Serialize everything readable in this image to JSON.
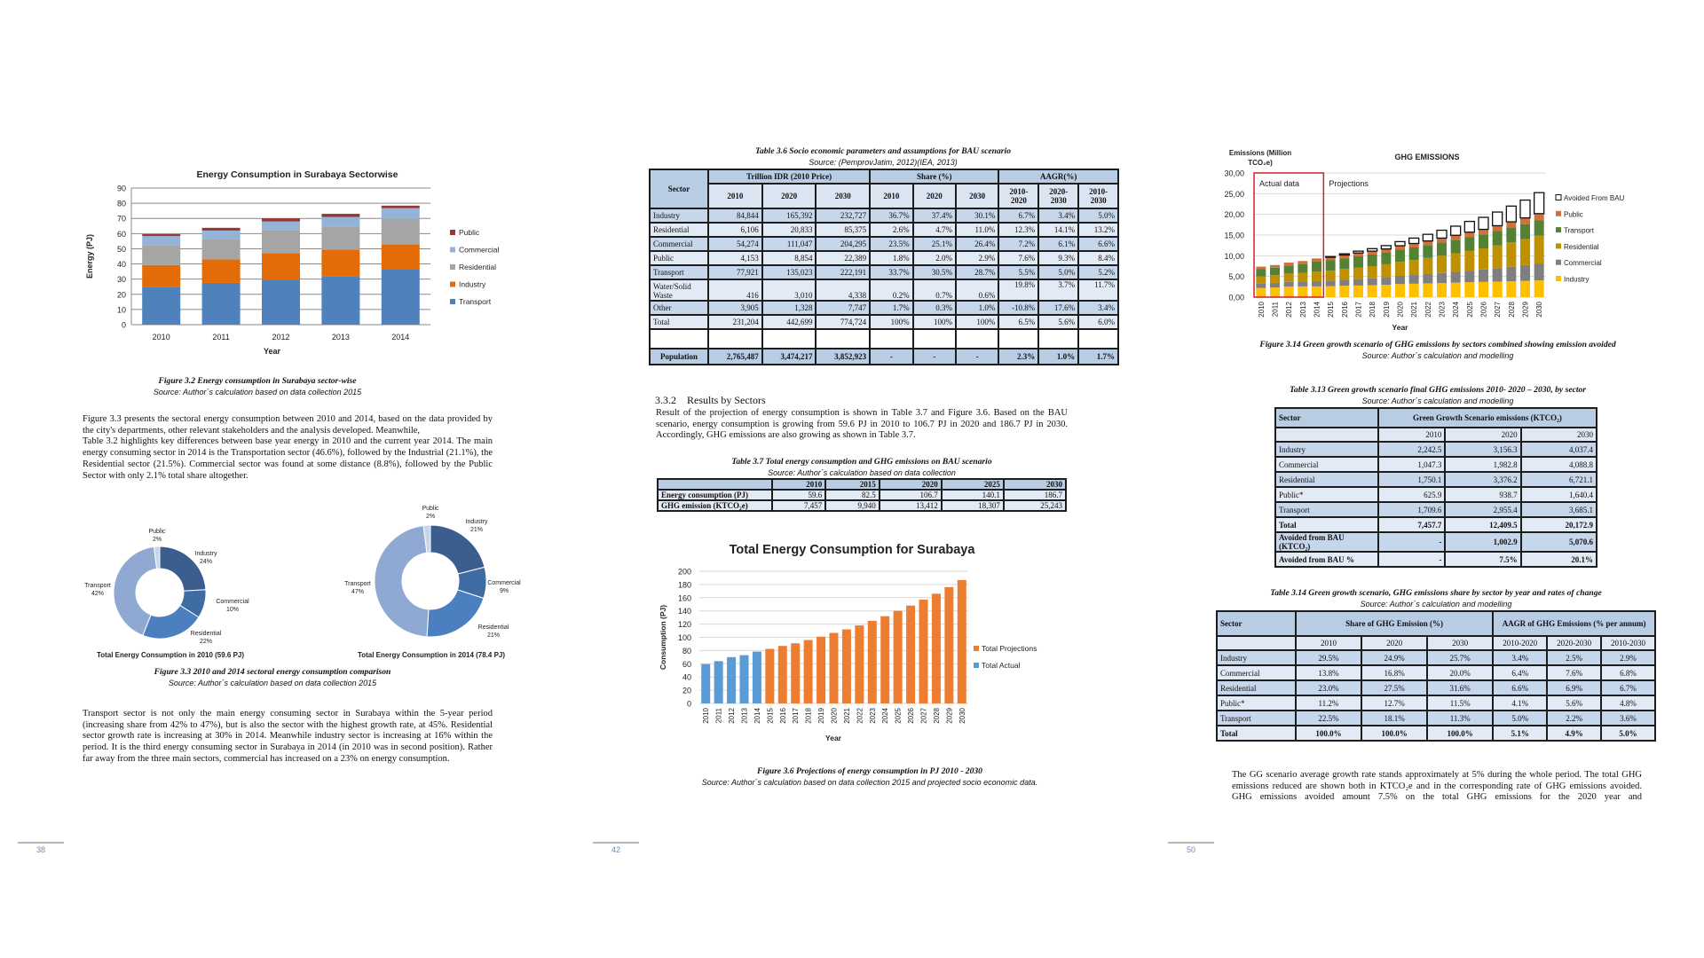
{
  "page1": {
    "number": "38",
    "fig32_caption": "Figure 3.2 Energy consumption in Surabaya sector-wise",
    "fig32_source": "Source: Author´s calculation based on data collection 2015",
    "para1a": "Figure 3.3 presents the sectoral energy consumption between 2010 and 2014, based on the data provided by the city's departments, other relevant stakeholders and the analysis developed. Meanwhile,",
    "para1b": "Table 3.2 highlights key differences between base year energy in 2010 and the current year 2014. The main energy consuming sector in 2014 is the Transportation sector (46.6%), followed by the Industrial (21.1%), the Residential sector (21.5%). Commercial sector was found at some distance (8.8%), followed by the Public Sector with only 2.1% total share altogether.",
    "fig33_caption": "Figure 3.3 2010 and 2014 sectoral energy consumption comparison",
    "fig33_source": "Source: Author´s calculation based on data collection 2015",
    "para2": "Transport sector is not only the main energy consuming sector in Surabaya within the 5-year period (increasing share from 42% to 47%), but is also the sector with the highest growth rate, at 45%. Residential sector growth rate is increasing at 30% in 2014. Meanwhile industry sector is increasing at 16% within the period. It is the third energy consuming sector in Surabaya in 2014 (in 2010 was in second position). Rather far away from the three main sectors, commercial has increased on a 23% on energy consumption."
  },
  "page2": {
    "number": "42",
    "section_number": "3.3.2",
    "section_title": "Results by Sectors",
    "para": "Result of the projection of energy consumption is shown in Table 3.7 and Figure 3.6. Based on the BAU scenario, energy consumption is growing from 59.6 PJ in 2010 to 106.7 PJ in 2020 and 186.7 PJ in 2030. Accordingly, GHG emissions are also growing as shown in Table 3.7.",
    "fig36_caption": "Figure 3.6 Projections of energy consumption in PJ 2010 - 2030",
    "fig36_source": "Source: Author´s calculation based on data collection 2015 and projected socio economic data."
  },
  "page3": {
    "number": "50",
    "fig314_caption": "Figure 3.14 Green growth scenario of GHG emissions by sectors combined showing emission avoided",
    "fig314_source": "Source: Author´s calculation and modelling",
    "para": "The GG scenario average growth rate stands approximately at 5% during the whole period. The total GHG emissions reduced are shown both in KTCO₂e and in the corresponding rate of GHG emissions avoided. GHG emissions avoided amount 7.5% on the total GHG emissions for the 2020 year and"
  },
  "table_3_6": {
    "caption": "Table 3.6 Socio economic parameters and assumptions for BAU scenario",
    "source": "Source: (PemprovJatim, 2012)(IEA, 2013)",
    "sector": "Sector",
    "group_idr": "Trillion IDR (2010 Price)",
    "group_share": "Share (%)",
    "group_aagr": "AAGR(%)",
    "years": [
      "2010",
      "2020",
      "2030",
      "2010",
      "2020",
      "2030"
    ],
    "periods": [
      "2010-2020",
      "2020-2030",
      "2010-2030"
    ],
    "rows": [
      [
        "Industry",
        "84,844",
        "165,392",
        "232,727",
        "36.7%",
        "37.4%",
        "30.1%",
        "6.7%",
        "3.4%",
        "5.0%"
      ],
      [
        "Residential",
        "6,106",
        "20,833",
        "85,375",
        "2.6%",
        "4.7%",
        "11.0%",
        "12.3%",
        "14.1%",
        "13.2%"
      ],
      [
        "Commercial",
        "54,274",
        "111,047",
        "204,295",
        "23.5%",
        "25.1%",
        "26.4%",
        "7.2%",
        "6.1%",
        "6.6%"
      ],
      [
        "Public",
        "4,153",
        "8,854",
        "22,389",
        "1.8%",
        "2.0%",
        "2.9%",
        "7.6%",
        "9.3%",
        "8.4%"
      ],
      [
        "Transport",
        "77,921",
        "135,023",
        "222,191",
        "33.7%",
        "30.5%",
        "28.7%",
        "5.5%",
        "5.0%",
        "5.2%"
      ],
      [
        "Water/Solid Waste",
        "416",
        "3,010",
        "4,338",
        "0.2%",
        "0.7%",
        "0.6%",
        "19.8%",
        "3.7%",
        "11.7%"
      ],
      [
        "Other",
        "3,905",
        "1,328",
        "7,747",
        "1.7%",
        "0.3%",
        "1.0%",
        "-10.8%",
        "17.6%",
        "3.4%"
      ],
      [
        "Total",
        "231,204",
        "442,699",
        "774,724",
        "100%",
        "100%",
        "100%",
        "6.5%",
        "5.6%",
        "6.0%"
      ],
      [
        "",
        "",
        "",
        "",
        "",
        "",
        "",
        "",
        "",
        ""
      ],
      [
        "Population",
        "2,765,487",
        "3,474,217",
        "3,852,923",
        "-",
        "-",
        "-",
        "2.3%",
        "1.0%",
        "1.7%"
      ]
    ]
  },
  "table_3_7": {
    "caption": "Table 3.7 Total energy consumption and GHG emissions on BAU scenario",
    "source": "Source: Author´s calculation based on data collection",
    "years": [
      "2010",
      "2015",
      "2020",
      "2025",
      "2030"
    ],
    "rows": [
      [
        "Energy consumption (PJ)",
        "59.6",
        "82.5",
        "106.7",
        "140.1",
        "186.7"
      ],
      [
        "GHG emission (KTCO₂e)",
        "7,457",
        "9,940",
        "13,412",
        "18,307",
        "25,243"
      ]
    ]
  },
  "table_3_13": {
    "caption": "Table 3.13 Green growth scenario final GHG emissions 2010- 2020 – 2030, by sector",
    "source": "Source: Author´s calculation and modelling",
    "sector": "Sector",
    "group": "Green Growth Scenario emissions (KTCO₂)",
    "years": [
      "2010",
      "2020",
      "2030"
    ],
    "rows": [
      [
        "Industry",
        "2,242.5",
        "3,156.3",
        "4,037.4"
      ],
      [
        "Commercial",
        "1,047.3",
        "1,982.8",
        "4,088.8"
      ],
      [
        "Residential",
        "1,750.1",
        "3,376.2",
        "6,721.1"
      ],
      [
        "Public*",
        "625.9",
        "938.7",
        "1,640.4"
      ],
      [
        "Transport",
        "1,709.6",
        "2,955.4",
        "3,685.1"
      ],
      [
        "Total",
        "7,457.7",
        "12,409.5",
        "20,172.9"
      ],
      [
        "Avoided from BAU (KTCO₂)",
        "-",
        "1,002.9",
        "5,070.6"
      ],
      [
        "Avoided from BAU  %",
        "-",
        "7.5%",
        "20.1%"
      ]
    ]
  },
  "table_3_14": {
    "caption": "Table 3.14 Green growth scenario, GHG emissions share by sector by year and rates of change",
    "source": "Source: Author´s calculation and modelling",
    "sector": "Sector",
    "group_share": "Share of GHG Emission (%)",
    "group_aagr": "AAGR of GHG Emissions (% per annum)",
    "years": [
      "2010",
      "2020",
      "2030",
      "2010-2020",
      "2020-2030",
      "2010-2030"
    ],
    "rows": [
      [
        "Industry",
        "29.5%",
        "24.9%",
        "25.7%",
        "3.4%",
        "2.5%",
        "2.9%"
      ],
      [
        "Commercial",
        "13.8%",
        "16.8%",
        "20.0%",
        "6.4%",
        "7.6%",
        "6.8%"
      ],
      [
        "Residential",
        "23.0%",
        "27.5%",
        "31.6%",
        "6.6%",
        "6.9%",
        "6.7%"
      ],
      [
        "Public*",
        "11.2%",
        "12.7%",
        "11.5%",
        "4.1%",
        "5.6%",
        "4.8%"
      ],
      [
        "Transport",
        "22.5%",
        "18.1%",
        "11.3%",
        "5.0%",
        "2.2%",
        "3.6%"
      ],
      [
        "Total",
        "100.0%",
        "100.0%",
        "100.0%",
        "5.1%",
        "4.9%",
        "5.0%"
      ]
    ]
  },
  "chart_data": [
    {
      "type": "bar",
      "stacked": true,
      "title": "Energy Consumption in Surabaya Sectorwise",
      "xlabel": "Year",
      "ylabel": "Energy (PJ)",
      "ylim": [
        0,
        90
      ],
      "yticks": [
        0,
        10,
        20,
        30,
        40,
        50,
        60,
        70,
        80,
        90
      ],
      "grid": true,
      "legend": "right",
      "categories": [
        "2010",
        "2011",
        "2012",
        "2013",
        "2014"
      ],
      "series": [
        {
          "name": "Transport",
          "color": "#4f81bd",
          "values": [
            25.0,
            27.5,
            29.5,
            32.0,
            36.5
          ]
        },
        {
          "name": "Industry",
          "color": "#e36c09",
          "values": [
            14.3,
            15.5,
            17.5,
            17.5,
            16.5
          ]
        },
        {
          "name": "Residential",
          "color": "#a5a5a5",
          "values": [
            13.1,
            13.5,
            15.0,
            15.0,
            16.8
          ]
        },
        {
          "name": "Commercial",
          "color": "#95b3d7",
          "values": [
            6.0,
            5.5,
            6.0,
            6.5,
            7.0
          ]
        },
        {
          "name": "Public",
          "color": "#953735",
          "values": [
            1.2,
            1.8,
            2.0,
            2.0,
            1.6
          ]
        }
      ]
    },
    {
      "type": "pie",
      "donut": true,
      "title": "Total Energy Consumption in 2010 (59.6 PJ)",
      "slices": [
        {
          "label": "Industry",
          "value": 24,
          "text": "24%",
          "color": "#3b5e8e"
        },
        {
          "label": "Commercial",
          "value": 10,
          "text": "10%",
          "color": "#406ca4"
        },
        {
          "label": "Residential",
          "value": 22,
          "text": "22%",
          "color": "#4b7fbf"
        },
        {
          "label": "Transport",
          "value": 42,
          "text": "42%",
          "color": "#8fa9d3"
        },
        {
          "label": "Public",
          "value": 2,
          "text": "2%",
          "color": "#c7d4ea"
        }
      ]
    },
    {
      "type": "pie",
      "donut": true,
      "title": "Total Energy Consumption in 2014 (78.4 PJ)",
      "slices": [
        {
          "label": "Industry",
          "value": 21,
          "text": "21%",
          "color": "#3b5e8e"
        },
        {
          "label": "Commercial",
          "value": 9,
          "text": "9%",
          "color": "#406ca4"
        },
        {
          "label": "Residential",
          "value": 21,
          "text": "21%",
          "color": "#4b7fbf"
        },
        {
          "label": "Transport",
          "value": 47,
          "text": "47%",
          "color": "#8fa9d3"
        },
        {
          "label": "Public",
          "value": 2,
          "text": "2%",
          "color": "#c7d4ea"
        }
      ]
    },
    {
      "type": "bar",
      "title": "Total Energy Consumption for Surabaya",
      "xlabel": "Year",
      "ylabel": "Consumption (PJ)",
      "ylim": [
        0,
        200
      ],
      "yticks": [
        0,
        20,
        40,
        60,
        80,
        100,
        120,
        140,
        160,
        180,
        200
      ],
      "grid": true,
      "legend": "right",
      "categories": [
        "2010",
        "2011",
        "2012",
        "2013",
        "2014",
        "2015",
        "2016",
        "2017",
        "2018",
        "2019",
        "2020",
        "2021",
        "2022",
        "2023",
        "2024",
        "2025",
        "2026",
        "2027",
        "2028",
        "2029",
        "2030"
      ],
      "series": [
        {
          "name": "Total Projections",
          "color": "#ed7d31",
          "values": [
            null,
            null,
            null,
            null,
            null,
            82.5,
            87,
            91,
            96,
            101,
            106.7,
            112,
            118,
            125,
            132,
            140.1,
            148,
            157,
            166,
            176,
            186.7
          ]
        },
        {
          "name": "Total Actual",
          "color": "#5b9bd5",
          "values": [
            59.6,
            64,
            70,
            73,
            78.4,
            null,
            null,
            null,
            null,
            null,
            null,
            null,
            null,
            null,
            null,
            null,
            null,
            null,
            null,
            null,
            null
          ]
        }
      ]
    },
    {
      "type": "bar",
      "stacked": true,
      "title": "GHG EMISSIONS",
      "xlabel": "Year",
      "ylabel_lines": [
        "Emissions (Million",
        "TCO₂e)"
      ],
      "ylim": [
        0,
        30
      ],
      "yticks": [
        "0,00",
        "5,00",
        "10,00",
        "15,00",
        "20,00",
        "25,00",
        "30,00"
      ],
      "grid": true,
      "legend": "right",
      "annotations": {
        "actual": "Actual data",
        "projections": "Projections",
        "actual_color": "#d9333f"
      },
      "categories": [
        "2010",
        "2011",
        "2012",
        "2013",
        "2014",
        "2015",
        "2016",
        "2017",
        "2018",
        "2019",
        "2020",
        "2021",
        "2022",
        "2023",
        "2024",
        "2025",
        "2026",
        "2027",
        "2028",
        "2029",
        "2030"
      ],
      "series": [
        {
          "name": "Industry",
          "color": "#ffc000",
          "values": [
            2.24,
            2.35,
            2.55,
            2.6,
            2.6,
            2.65,
            2.75,
            2.82,
            2.9,
            3.0,
            3.16,
            3.25,
            3.33,
            3.42,
            3.5,
            3.6,
            3.68,
            3.76,
            3.85,
            3.95,
            4.04
          ]
        },
        {
          "name": "Commercial",
          "color": "#7f7f7f",
          "values": [
            1.05,
            1.1,
            1.15,
            1.2,
            1.25,
            1.35,
            1.45,
            1.55,
            1.65,
            1.8,
            1.98,
            2.1,
            2.25,
            2.4,
            2.6,
            2.8,
            3.0,
            3.25,
            3.5,
            3.8,
            4.09
          ]
        },
        {
          "name": "Residential",
          "color": "#bf9000",
          "values": [
            1.75,
            1.85,
            2.0,
            2.1,
            2.3,
            2.4,
            2.6,
            2.8,
            2.95,
            3.15,
            3.38,
            3.6,
            3.9,
            4.2,
            4.5,
            4.85,
            5.1,
            5.5,
            5.9,
            6.3,
            6.72
          ]
        },
        {
          "name": "Transport",
          "color": "#548235",
          "values": [
            1.71,
            1.8,
            1.95,
            2.1,
            2.5,
            2.5,
            2.6,
            2.7,
            2.8,
            2.85,
            2.96,
            3.05,
            3.1,
            3.2,
            3.25,
            3.3,
            3.4,
            3.45,
            3.55,
            3.6,
            3.69
          ]
        },
        {
          "name": "Public",
          "color": "#d2703a",
          "values": [
            0.63,
            0.65,
            0.7,
            0.72,
            0.7,
            0.75,
            0.78,
            0.8,
            0.82,
            0.85,
            0.94,
            0.97,
            1.0,
            1.05,
            1.1,
            1.15,
            1.2,
            1.3,
            1.4,
            1.5,
            1.64
          ]
        },
        {
          "name": "Avoided From BAU",
          "color": "#ffffff",
          "values": [
            0,
            0,
            0,
            0,
            0,
            0.15,
            0.3,
            0.45,
            0.6,
            0.8,
            1.0,
            1.3,
            1.6,
            1.9,
            2.2,
            2.6,
            2.9,
            3.3,
            3.8,
            4.3,
            5.07
          ]
        }
      ]
    }
  ]
}
